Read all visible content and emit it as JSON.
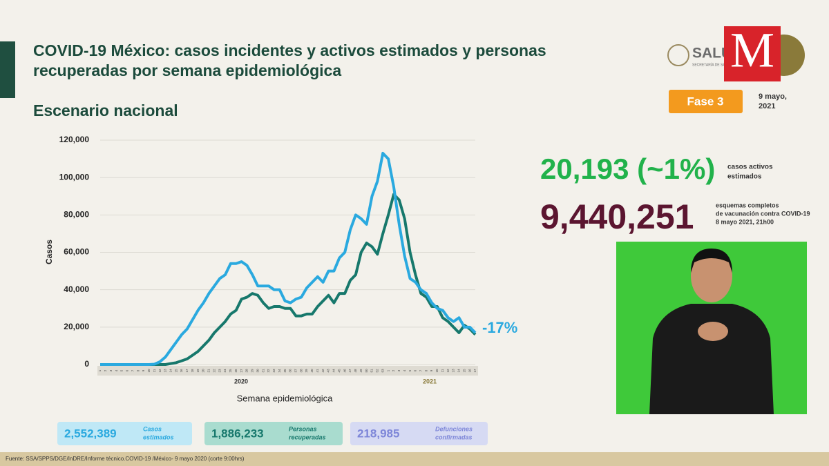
{
  "header": {
    "title_lines": [
      "COVID-19 México: casos incidentes y activos estimados y personas",
      "recuperadas por semana epidemiológica"
    ],
    "subtitle": "Escenario nacional",
    "logo_salud": "SALUD",
    "logo_salud_sub": "SECRETARÍA DE SALUD",
    "logo_m": "M",
    "phase": "Fase 3",
    "date_lines": [
      "9 mayo,",
      "2021"
    ]
  },
  "stats": {
    "active": "20,193 (~1%)",
    "active_label": [
      "casos activos",
      "estimados"
    ],
    "vaccinated": "9,440,251",
    "vaccinated_label": [
      "esquemas completos",
      "de vacunación contra COVID-19",
      "8 mayo 2021, 21h00"
    ],
    "boxes": [
      {
        "value": "2,552,389",
        "label": [
          "Casos",
          "estimados"
        ]
      },
      {
        "value": "1,886,233",
        "label": [
          "Personas",
          "recuperadas"
        ]
      },
      {
        "value": "218,985",
        "label": [
          "Defunciones",
          "confirmadas"
        ]
      }
    ]
  },
  "footer": "Fuente: SSA/SPPS/DGE/InDRE/Informe técnico.COVID-19 /México- 9 mayo 2020 (corte 9:00hrs)",
  "chart_data": {
    "type": "line",
    "ylabel": "Casos",
    "xlabel": "Semana epidemiológica",
    "year_labels": [
      "2020",
      "2021"
    ],
    "annotation": "-17%",
    "categories": [
      "1",
      "2",
      "3",
      "4",
      "5",
      "6",
      "7",
      "8",
      "9",
      "10",
      "11",
      "12",
      "13",
      "14",
      "15",
      "16",
      "17",
      "18",
      "19",
      "20",
      "21",
      "22",
      "23",
      "24",
      "25",
      "26",
      "27",
      "28",
      "29",
      "30",
      "31",
      "32",
      "33",
      "34",
      "35",
      "36",
      "37",
      "38",
      "39",
      "40",
      "41",
      "42",
      "43",
      "44",
      "45",
      "46",
      "47",
      "48",
      "49",
      "50",
      "51",
      "52",
      "53",
      "1",
      "2",
      "3",
      "4",
      "5",
      "6",
      "7",
      "8",
      "9",
      "10",
      "11",
      "12",
      "13",
      "14",
      "15",
      "16",
      "17"
    ],
    "series": [
      {
        "color": "#2aa9df",
        "values": [
          0,
          0,
          0,
          0,
          0,
          0,
          0,
          0,
          0,
          0,
          200,
          1500,
          4000,
          8000,
          12000,
          16000,
          19000,
          24000,
          29000,
          33000,
          38000,
          42000,
          46000,
          48000,
          54000,
          54000,
          55000,
          53000,
          48000,
          42000,
          42000,
          42000,
          40000,
          40000,
          34000,
          33000,
          35000,
          36000,
          41000,
          44000,
          47000,
          44000,
          50000,
          50000,
          57000,
          60000,
          72000,
          80000,
          78000,
          75000,
          90000,
          98000,
          113000,
          110000,
          95000,
          75000,
          58000,
          46000,
          44000,
          40000,
          38000,
          33000,
          30000,
          29000,
          25000,
          23000,
          25000,
          20000,
          20000,
          17000
        ]
      },
      {
        "color": "#17786c",
        "values": [
          0,
          0,
          0,
          0,
          0,
          0,
          0,
          0,
          0,
          0,
          0,
          0,
          0,
          500,
          1000,
          2000,
          3000,
          5000,
          7000,
          10000,
          13000,
          17000,
          20000,
          23000,
          27000,
          29000,
          35000,
          36000,
          38000,
          37000,
          33000,
          30000,
          31000,
          31000,
          30000,
          30000,
          26000,
          26000,
          27000,
          27000,
          31000,
          34000,
          37000,
          33000,
          38000,
          38000,
          45000,
          48000,
          60000,
          65000,
          63000,
          59000,
          70000,
          80000,
          91000,
          88000,
          78000,
          60000,
          48000,
          38000,
          36000,
          31000,
          31000,
          25000,
          23000,
          20000,
          17000,
          21000,
          19000,
          16000
        ]
      }
    ],
    "ylim": [
      0,
      120000
    ],
    "yticks": [
      0,
      {
        "value": 20000,
        "label": "20,000"
      },
      {
        "value": 40000,
        "label": "40,000"
      },
      {
        "value": 60000,
        "label": "60,000"
      },
      {
        "value": 80000,
        "label": "80,000"
      },
      {
        "value": 100000,
        "label": "100,000"
      },
      {
        "value": 120000,
        "label": "120,000"
      }
    ],
    "grid": true
  }
}
